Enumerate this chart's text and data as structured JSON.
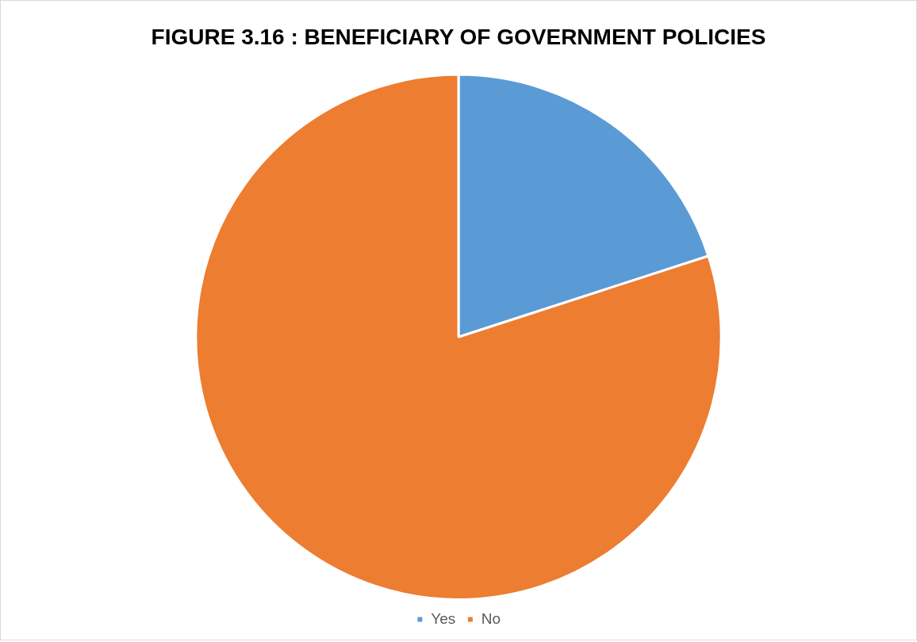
{
  "chart_data": {
    "type": "pie",
    "title": "FIGURE 3.16 : BENEFICIARY OF GOVERNMENT POLICIES",
    "categories": [
      "Yes",
      "No"
    ],
    "values": [
      20,
      80
    ],
    "colors": [
      "#5b9bd5",
      "#ed7d31"
    ],
    "legend": "bottom"
  }
}
